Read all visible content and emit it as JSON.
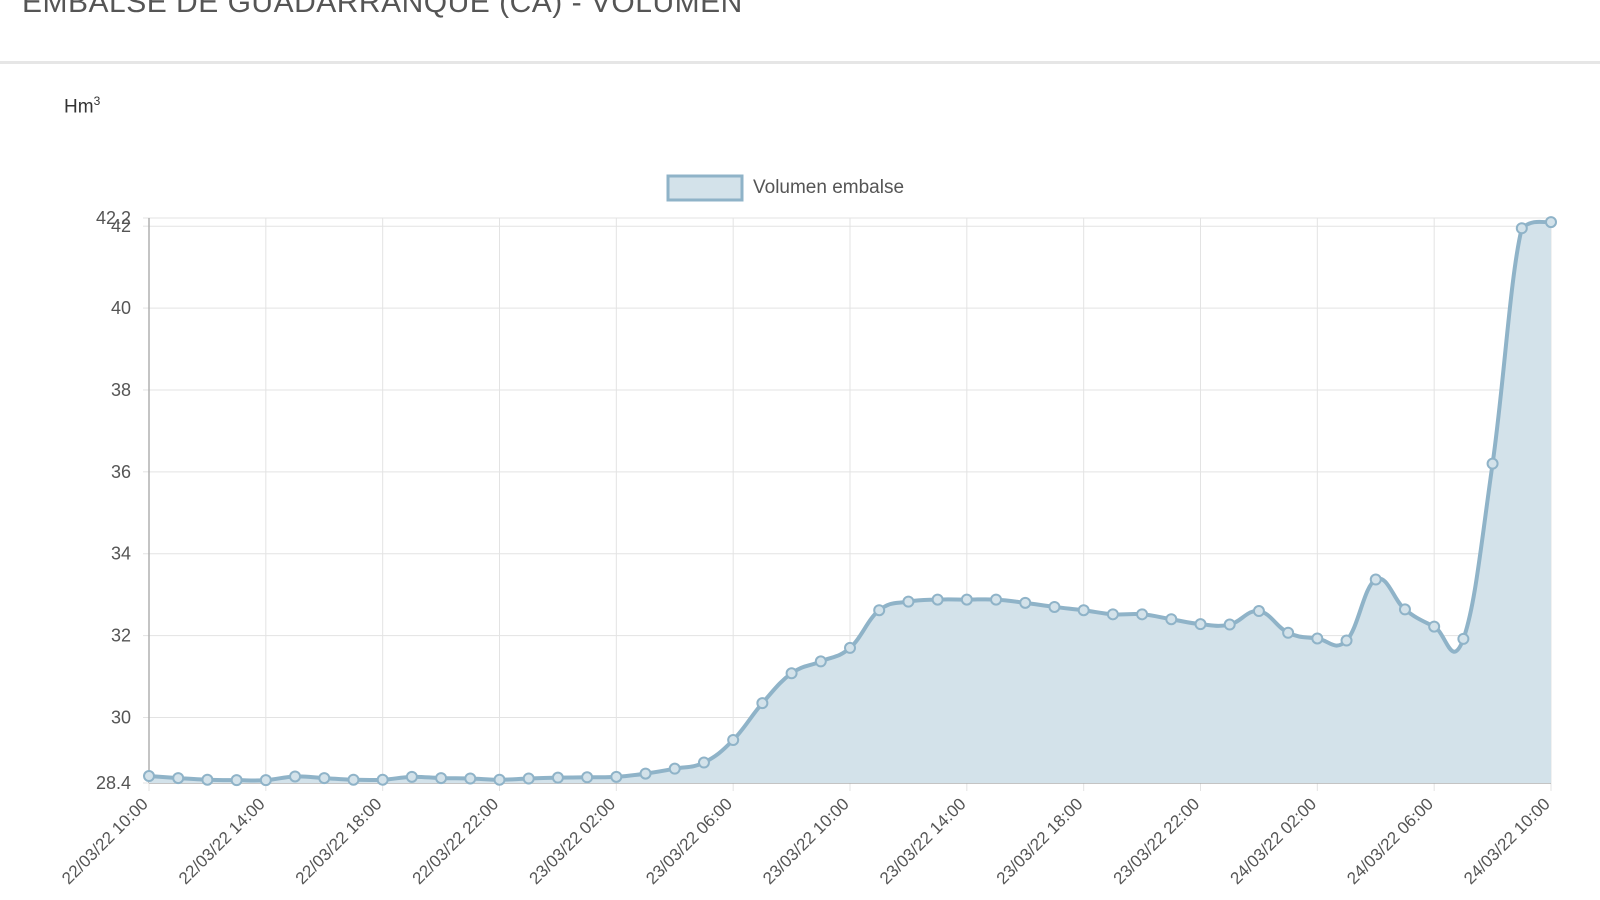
{
  "page": {
    "title": "EMBALSE DE GUADARRANQUE (CA) - VOLUMEN",
    "unit_label": "Hm",
    "unit_exp": "3"
  },
  "colors": {
    "line": "#8fb3c8",
    "fill": "#d3e2ea",
    "grid": "#e3e3e3",
    "axis": "#b0b0b0"
  },
  "chart_data": {
    "type": "area",
    "series": [
      {
        "name": "Volumen embalse",
        "values": [
          28.57,
          28.52,
          28.48,
          28.47,
          28.47,
          28.56,
          28.52,
          28.48,
          28.48,
          28.55,
          28.52,
          28.51,
          28.48,
          28.51,
          28.53,
          28.54,
          28.55,
          28.63,
          28.75,
          28.9,
          29.45,
          30.35,
          31.08,
          31.37,
          31.7,
          32.62,
          32.83,
          32.88,
          32.88,
          32.88,
          32.8,
          32.7,
          32.62,
          32.52,
          32.52,
          32.4,
          32.28,
          32.27,
          32.6,
          32.07,
          31.93,
          31.88,
          33.37,
          32.64,
          32.22,
          31.92,
          36.2,
          41.95,
          42.1
        ]
      }
    ],
    "x_start": "22/03/22 10:00",
    "x_step_hours": 1,
    "x_tick_labels": [
      "22/03/22 10:00",
      "22/03/22 14:00",
      "22/03/22 18:00",
      "22/03/22 22:00",
      "23/03/22 02:00",
      "23/03/22 06:00",
      "23/03/22 10:00",
      "23/03/22 14:00",
      "23/03/22 18:00",
      "23/03/22 22:00",
      "24/03/22 02:00",
      "24/03/22 06:00",
      "24/03/22 10:00"
    ],
    "y_ticks": [
      "28.4",
      "30",
      "32",
      "34",
      "36",
      "38",
      "40",
      "42",
      "42.2"
    ],
    "ylim": [
      28.4,
      42.2
    ],
    "grid": true,
    "legend_position": "top-center"
  }
}
